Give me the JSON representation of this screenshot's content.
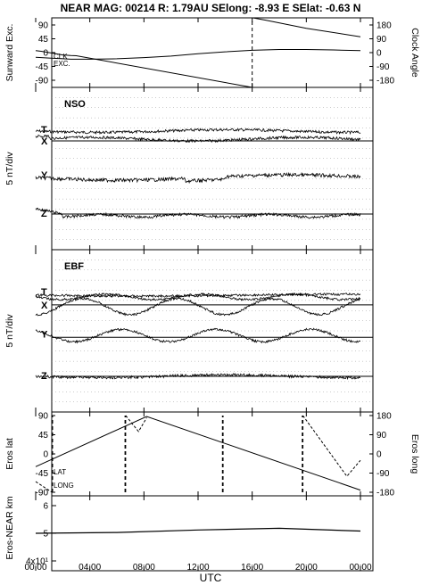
{
  "title": "NEAR MAG: 00214  R: 1.79AU  SElong:   -8.93 E  SElat:   -0.63 N",
  "chart_data": [
    {
      "type": "line",
      "id": "angles",
      "ylabel_left": "Sunward Exc.",
      "ylabel_right": "Clock Angle",
      "yticks_left": [
        "90",
        "45",
        "0",
        "-45",
        "-90"
      ],
      "yticks_right": [
        "180",
        "90",
        "0",
        "-90",
        "-180"
      ],
      "ylim": [
        -90,
        90
      ],
      "ylim_right": [
        -180,
        180
      ],
      "series_labels": [
        "CLK",
        "EXC."
      ],
      "series": [
        {
          "axis": "right",
          "style": "solid",
          "x": [
            0,
            0.4,
            1,
            2,
            2.6,
            3,
            16,
            16.05,
            17,
            20,
            24
          ],
          "values": [
            10,
            7,
            0,
            -12,
            -15,
            -16,
            -180,
            180,
            168,
            126,
            82
          ]
        },
        {
          "axis": "left",
          "style": "solid",
          "x": [
            0,
            1,
            2,
            2.6,
            4,
            6,
            8,
            10,
            12,
            14,
            16,
            18,
            20,
            22,
            24
          ],
          "values": [
            -12,
            -14,
            -16,
            -17,
            -17,
            -16,
            -13,
            -9,
            -3,
            2,
            6,
            8,
            8,
            7,
            5
          ]
        }
      ]
    },
    {
      "type": "line",
      "id": "nso",
      "panel_label": "NSO",
      "ylabel": "5 nT/div",
      "components": [
        "T",
        "X",
        "Y",
        "Z"
      ]
    },
    {
      "type": "line",
      "id": "ebf",
      "panel_label": "EBF",
      "ylabel": "5 nT/div",
      "components": [
        "T",
        "X",
        "Y",
        "Z"
      ]
    },
    {
      "type": "line",
      "id": "eros",
      "ylabel_left": "Eros lat",
      "ylabel_right": "Eros long",
      "yticks_left": [
        "90",
        "45",
        "0",
        "-45",
        "-90"
      ],
      "yticks_right": [
        "180",
        "90",
        "0",
        "-90",
        "-180"
      ],
      "ylim": [
        -90,
        90
      ],
      "ylim_right": [
        -180,
        180
      ],
      "series_labels": [
        "LAT",
        "LONG"
      ],
      "series": [
        {
          "name": "LAT",
          "axis": "left",
          "style": "solid",
          "x": [
            0,
            8.2,
            24
          ],
          "values": [
            -30,
            88,
            -85
          ]
        },
        {
          "name": "LONG",
          "axis": "right",
          "style": "dashed",
          "x": [
            0,
            1.2,
            1.25,
            6.6,
            6.65,
            7.6,
            8.2,
            13.8,
            13.85,
            19.7,
            19.75,
            23.0,
            24
          ],
          "values": [
            -130,
            -180,
            180,
            -180,
            180,
            105,
            170,
            -180,
            180,
            -180,
            180,
            -105,
            -30
          ]
        }
      ]
    },
    {
      "type": "line",
      "id": "range",
      "ylabel": "Eros-NEAR km",
      "yticks": [
        "6",
        "5",
        "4x10¹"
      ],
      "x": [
        0,
        6,
        12,
        18,
        24
      ],
      "values": [
        5.0,
        5.03,
        5.12,
        5.18,
        5.08
      ]
    }
  ],
  "xaxis": {
    "label": "UTC",
    "ticks": [
      "00:00",
      "04:00",
      "08:00",
      "12:00",
      "16:00",
      "20:00",
      "00:00"
    ]
  }
}
